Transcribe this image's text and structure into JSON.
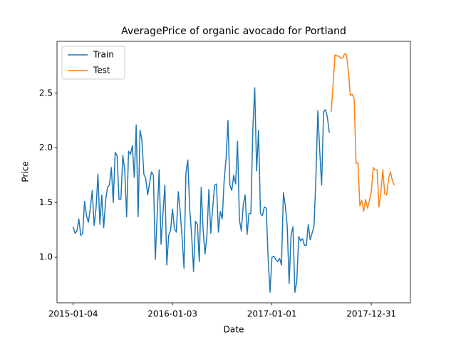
{
  "chart_data": {
    "type": "line",
    "title": "AveragePrice of organic avocado for Portland",
    "xlabel": "Date",
    "ylabel": "Price",
    "xlim": [
      "2014-11-06",
      "2018-05-23"
    ],
    "xticks": [
      "2015-01-04",
      "2016-01-03",
      "2017-01-01",
      "2017-12-31"
    ],
    "ylim": [
      0.584,
      2.974
    ],
    "yticks": [
      {
        "value": 1,
        "label": "1.0"
      },
      {
        "value": 1.5,
        "label": "1.5"
      },
      {
        "value": 2,
        "label": "2.0"
      },
      {
        "value": 2.5,
        "label": "2.5"
      }
    ],
    "legend": "upper left",
    "series": [
      {
        "name": "Train",
        "color": "#1f77b4",
        "x": [
          "2015-01-04",
          "2015-01-11",
          "2015-01-18",
          "2015-01-25",
          "2015-02-01",
          "2015-02-08",
          "2015-02-15",
          "2015-02-22",
          "2015-03-01",
          "2015-03-08",
          "2015-03-15",
          "2015-03-22",
          "2015-03-29",
          "2015-04-05",
          "2015-04-12",
          "2015-04-19",
          "2015-04-26",
          "2015-05-03",
          "2015-05-10",
          "2015-05-17",
          "2015-05-24",
          "2015-05-31",
          "2015-06-07",
          "2015-06-14",
          "2015-06-21",
          "2015-06-28",
          "2015-07-05",
          "2015-07-12",
          "2015-07-19",
          "2015-07-26",
          "2015-08-02",
          "2015-08-09",
          "2015-08-16",
          "2015-08-23",
          "2015-08-30",
          "2015-09-06",
          "2015-09-13",
          "2015-09-20",
          "2015-09-27",
          "2015-10-04",
          "2015-10-11",
          "2015-10-18",
          "2015-10-25",
          "2015-11-01",
          "2015-11-08",
          "2015-11-15",
          "2015-11-22",
          "2015-11-29",
          "2015-12-06",
          "2015-12-13",
          "2015-12-20",
          "2015-12-27",
          "2016-01-03",
          "2016-01-10",
          "2016-01-17",
          "2016-01-24",
          "2016-01-31",
          "2016-02-07",
          "2016-02-14",
          "2016-02-21",
          "2016-02-28",
          "2016-03-06",
          "2016-03-13",
          "2016-03-20",
          "2016-03-27",
          "2016-04-03",
          "2016-04-10",
          "2016-04-17",
          "2016-04-24",
          "2016-05-01",
          "2016-05-08",
          "2016-05-15",
          "2016-05-22",
          "2016-05-29",
          "2016-06-05",
          "2016-06-12",
          "2016-06-19",
          "2016-06-26",
          "2016-07-03",
          "2016-07-10",
          "2016-07-17",
          "2016-07-24",
          "2016-07-31",
          "2016-08-07",
          "2016-08-14",
          "2016-08-21",
          "2016-08-28",
          "2016-09-04",
          "2016-09-11",
          "2016-09-18",
          "2016-09-25",
          "2016-10-02",
          "2016-10-09",
          "2016-10-16",
          "2016-10-23",
          "2016-10-30",
          "2016-11-06",
          "2016-11-13",
          "2016-11-20",
          "2016-11-27",
          "2016-12-04",
          "2016-12-11",
          "2016-12-18",
          "2016-12-25",
          "2017-01-01",
          "2017-01-08",
          "2017-01-15",
          "2017-01-22",
          "2017-01-29",
          "2017-02-05",
          "2017-02-12",
          "2017-02-19",
          "2017-02-26",
          "2017-03-05",
          "2017-03-12",
          "2017-03-19",
          "2017-03-26",
          "2017-04-02",
          "2017-04-09",
          "2017-04-16",
          "2017-04-23",
          "2017-04-30",
          "2017-05-07",
          "2017-05-14",
          "2017-05-21",
          "2017-05-28",
          "2017-06-04",
          "2017-06-11",
          "2017-06-18",
          "2017-06-25",
          "2017-07-02",
          "2017-07-09",
          "2017-07-16",
          "2017-07-23",
          "2017-07-30"
        ],
        "values": [
          1.28,
          1.22,
          1.24,
          1.35,
          1.2,
          1.22,
          1.51,
          1.38,
          1.32,
          1.45,
          1.61,
          1.29,
          1.45,
          1.76,
          1.3,
          1.57,
          1.27,
          1.52,
          1.64,
          1.66,
          1.82,
          1.5,
          1.96,
          1.93,
          1.53,
          1.53,
          1.93,
          1.8,
          1.37,
          1.97,
          1.94,
          2.02,
          1.73,
          2.21,
          1.37,
          2.16,
          2.07,
          1.76,
          1.72,
          1.57,
          1.68,
          1.78,
          1.75,
          0.98,
          1.4,
          1.8,
          1.12,
          1.4,
          1.66,
          0.93,
          1.2,
          1.25,
          1.44,
          1.26,
          1.23,
          1.6,
          1.42,
          1.18,
          0.9,
          1.77,
          1.89,
          1.44,
          1.2,
          0.87,
          1.33,
          1.3,
          0.96,
          1.64,
          1.25,
          1.03,
          1.2,
          1.62,
          1.22,
          1.45,
          1.66,
          1.67,
          1.23,
          1.42,
          1.35,
          1.7,
          1.9,
          2.25,
          1.66,
          1.61,
          1.75,
          1.67,
          2.06,
          1.34,
          1.24,
          1.48,
          1.57,
          1.21,
          1.4,
          1.4,
          2.17,
          2.55,
          1.79,
          2.16,
          1.4,
          1.38,
          1.46,
          1.45,
          1.0,
          0.68,
          1.0,
          1.01,
          0.98,
          0.96,
          0.99,
          0.93,
          1.59,
          1.47,
          1.28,
          0.76,
          1.2,
          1.28,
          0.68,
          0.78,
          1.19,
          1.15,
          1.17,
          1.11,
          1.11,
          1.3,
          1.16,
          1.22,
          1.28,
          1.73,
          2.34,
          1.97,
          1.66,
          2.33,
          2.35,
          2.28,
          2.14
        ]
      },
      {
        "name": "Test",
        "color": "#ff7f0e",
        "x": [
          "2017-08-06",
          "2017-08-13",
          "2017-08-20",
          "2017-08-27",
          "2017-09-03",
          "2017-09-10",
          "2017-09-17",
          "2017-09-24",
          "2017-10-01",
          "2017-10-08",
          "2017-10-15",
          "2017-10-22",
          "2017-10-29",
          "2017-11-05",
          "2017-11-12",
          "2017-11-19",
          "2017-11-26",
          "2017-12-03",
          "2017-12-10",
          "2017-12-17",
          "2017-12-24",
          "2017-12-31",
          "2018-01-07",
          "2018-01-14",
          "2018-01-21",
          "2018-01-28",
          "2018-02-04",
          "2018-02-11",
          "2018-02-18",
          "2018-02-25",
          "2018-03-04",
          "2018-03-11",
          "2018-03-18",
          "2018-03-25"
        ],
        "values": [
          2.33,
          2.58,
          2.85,
          2.84,
          2.84,
          2.82,
          2.82,
          2.86,
          2.85,
          2.7,
          2.48,
          2.49,
          2.45,
          1.86,
          1.86,
          1.47,
          1.52,
          1.42,
          1.53,
          1.45,
          1.52,
          1.6,
          1.82,
          1.8,
          1.8,
          1.46,
          1.6,
          1.8,
          1.58,
          1.57,
          1.72,
          1.78,
          1.7,
          1.66
        ]
      }
    ]
  }
}
